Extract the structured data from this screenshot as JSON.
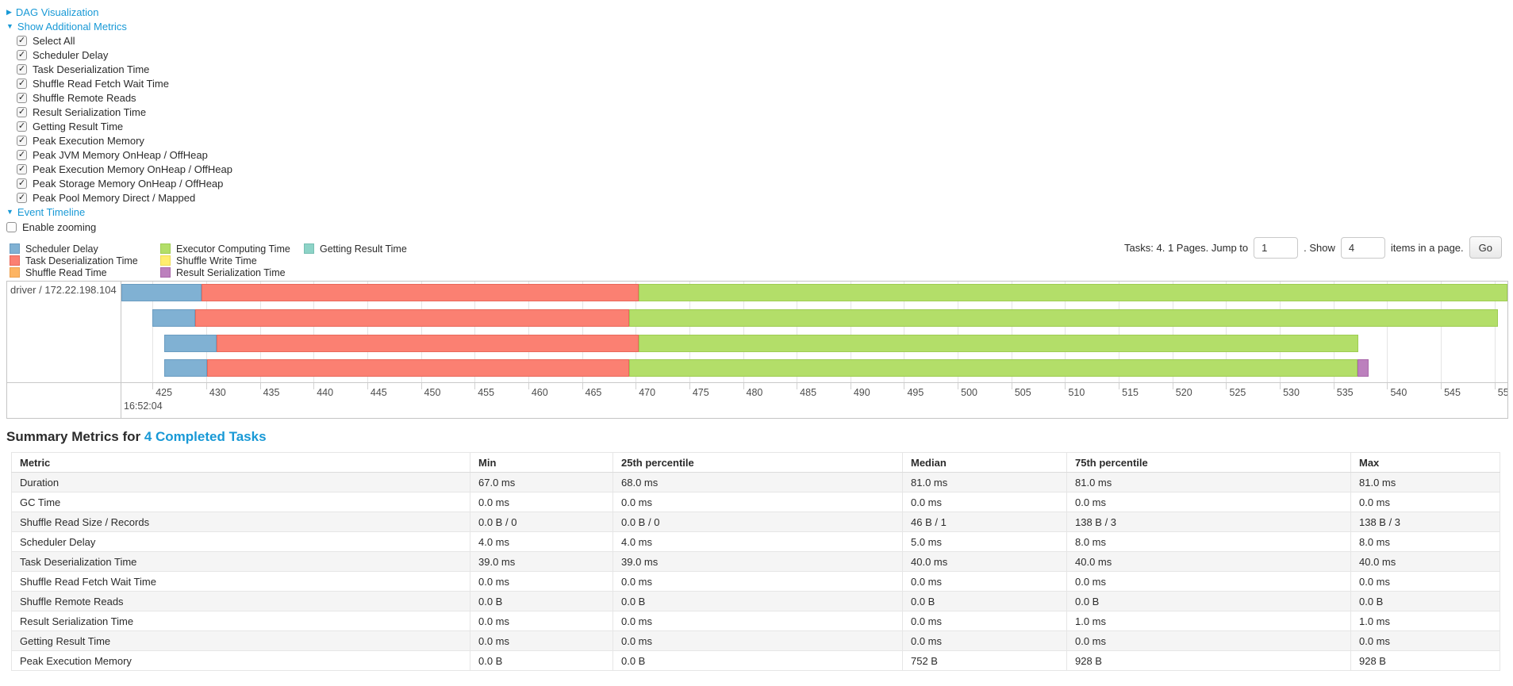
{
  "nav": {
    "dag": {
      "arrow": "▶",
      "label": "DAG Visualization"
    },
    "metrics_toggle": {
      "arrow": "▼",
      "label": "Show Additional Metrics"
    },
    "checkboxes": [
      {
        "label": "Select All",
        "checked": true
      },
      {
        "label": "Scheduler Delay",
        "checked": true
      },
      {
        "label": "Task Deserialization Time",
        "checked": true
      },
      {
        "label": "Shuffle Read Fetch Wait Time",
        "checked": true
      },
      {
        "label": "Shuffle Remote Reads",
        "checked": true
      },
      {
        "label": "Result Serialization Time",
        "checked": true
      },
      {
        "label": "Getting Result Time",
        "checked": true
      },
      {
        "label": "Peak Execution Memory",
        "checked": true
      },
      {
        "label": "Peak JVM Memory OnHeap / OffHeap",
        "checked": true
      },
      {
        "label": "Peak Execution Memory OnHeap / OffHeap",
        "checked": true
      },
      {
        "label": "Peak Storage Memory OnHeap / OffHeap",
        "checked": true
      },
      {
        "label": "Peak Pool Memory Direct / Mapped",
        "checked": true
      }
    ],
    "timeline_toggle": {
      "arrow": "▼",
      "label": "Event Timeline"
    },
    "enable_zooming": {
      "label": "Enable zooming",
      "checked": false
    }
  },
  "palette": {
    "scheduler_delay": {
      "label": "Scheduler Delay",
      "fill": "#80B1D3",
      "border": "#6A9CC1"
    },
    "task_deserialization": {
      "label": "Task Deserialization Time",
      "fill": "#FB8072",
      "border": "#E8685A"
    },
    "shuffle_read": {
      "label": "Shuffle Read Time",
      "fill": "#FDB462",
      "border": "#ECA14F"
    },
    "executor_computing": {
      "label": "Executor Computing Time",
      "fill": "#B3DE69",
      "border": "#9ECC52"
    },
    "shuffle_write": {
      "label": "Shuffle Write Time",
      "fill": "#FFED6F",
      "border": "#EDDA55"
    },
    "result_serialization": {
      "label": "Result Serialization Time",
      "fill": "#BC80BD",
      "border": "#A968AA"
    },
    "getting_result": {
      "label": "Getting Result Time",
      "fill": "#8DD3C7",
      "border": "#76BFB2"
    }
  },
  "legend_order": [
    "scheduler_delay",
    "task_deserialization",
    "shuffle_read",
    "executor_computing",
    "shuffle_write",
    "result_serialization",
    "getting_result"
  ],
  "pagination": {
    "prefix": "Tasks: 4. 1 Pages. Jump to",
    "jump_value": "1",
    "mid": ". Show",
    "show_value": "4",
    "suffix": "items in a page.",
    "go_label": "Go"
  },
  "chart_data": {
    "type": "timeline-gantt",
    "group_label": "driver / 172.22.198.104",
    "time_label": "16:52:04",
    "axis": {
      "min": 422.1,
      "max": 551.2,
      "tick_start": 425,
      "tick_end": 550,
      "tick_step": 5
    },
    "tasks": [
      {
        "segments": [
          {
            "type": "scheduler_delay",
            "start": 422.1,
            "end": 429.6
          },
          {
            "type": "task_deserialization",
            "start": 429.6,
            "end": 470.3
          },
          {
            "type": "executor_computing",
            "start": 470.3,
            "end": 551.2
          }
        ]
      },
      {
        "segments": [
          {
            "type": "scheduler_delay",
            "start": 425.0,
            "end": 429.0
          },
          {
            "type": "task_deserialization",
            "start": 429.0,
            "end": 469.4
          },
          {
            "type": "executor_computing",
            "start": 469.4,
            "end": 550.3
          }
        ]
      },
      {
        "segments": [
          {
            "type": "scheduler_delay",
            "start": 426.1,
            "end": 431.0
          },
          {
            "type": "task_deserialization",
            "start": 431.0,
            "end": 470.3
          },
          {
            "type": "executor_computing",
            "start": 470.3,
            "end": 537.3
          }
        ]
      },
      {
        "segments": [
          {
            "type": "scheduler_delay",
            "start": 426.1,
            "end": 430.1
          },
          {
            "type": "task_deserialization",
            "start": 430.1,
            "end": 469.4
          },
          {
            "type": "executor_computing",
            "start": 469.4,
            "end": 537.2
          },
          {
            "type": "result_serialization",
            "start": 537.2,
            "end": 538.3
          }
        ]
      }
    ]
  },
  "summary": {
    "title_prefix": "Summary Metrics for ",
    "title_link": "4 Completed Tasks",
    "table": {
      "headers": [
        "Metric",
        "Min",
        "25th percentile",
        "Median",
        "75th percentile",
        "Max"
      ],
      "rows": [
        {
          "metric": "Duration",
          "values": [
            "67.0 ms",
            "68.0 ms",
            "81.0 ms",
            "81.0 ms",
            "81.0 ms"
          ]
        },
        {
          "metric": "GC Time",
          "values": [
            "0.0 ms",
            "0.0 ms",
            "0.0 ms",
            "0.0 ms",
            "0.0 ms"
          ]
        },
        {
          "metric": "Shuffle Read Size / Records",
          "values": [
            "0.0 B / 0",
            "0.0 B / 0",
            "46 B / 1",
            "138 B / 3",
            "138 B / 3"
          ]
        },
        {
          "metric": "Scheduler Delay",
          "values": [
            "4.0 ms",
            "4.0 ms",
            "5.0 ms",
            "8.0 ms",
            "8.0 ms"
          ]
        },
        {
          "metric": "Task Deserialization Time",
          "values": [
            "39.0 ms",
            "39.0 ms",
            "40.0 ms",
            "40.0 ms",
            "40.0 ms"
          ]
        },
        {
          "metric": "Shuffle Read Fetch Wait Time",
          "values": [
            "0.0 ms",
            "0.0 ms",
            "0.0 ms",
            "0.0 ms",
            "0.0 ms"
          ]
        },
        {
          "metric": "Shuffle Remote Reads",
          "values": [
            "0.0 B",
            "0.0 B",
            "0.0 B",
            "0.0 B",
            "0.0 B"
          ]
        },
        {
          "metric": "Result Serialization Time",
          "values": [
            "0.0 ms",
            "0.0 ms",
            "0.0 ms",
            "1.0 ms",
            "1.0 ms"
          ]
        },
        {
          "metric": "Getting Result Time",
          "values": [
            "0.0 ms",
            "0.0 ms",
            "0.0 ms",
            "0.0 ms",
            "0.0 ms"
          ]
        },
        {
          "metric": "Peak Execution Memory",
          "values": [
            "0.0 B",
            "0.0 B",
            "752 B",
            "928 B",
            "928 B"
          ]
        }
      ]
    }
  }
}
